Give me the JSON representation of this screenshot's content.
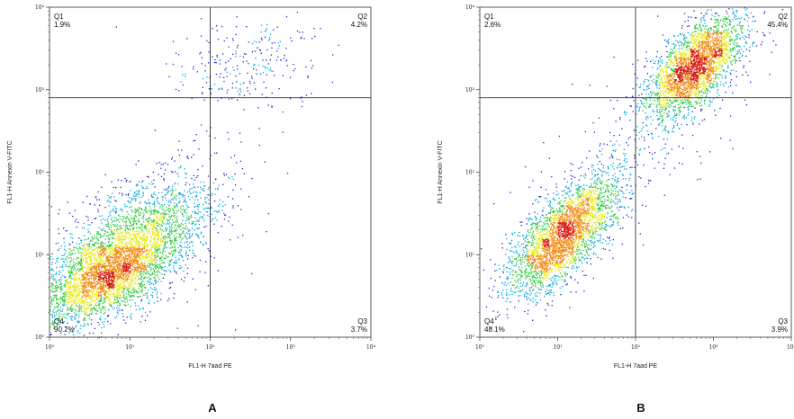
{
  "figure": {
    "panel_labels": [
      "A",
      "B"
    ]
  },
  "chart_data": [
    {
      "type": "scatter",
      "subtype": "flow-cytometry-density-dot-plot",
      "panel": "A",
      "xlabel": "FL1-H  7aad PE",
      "ylabel": "FL1-H  Annexin V-FITC",
      "xscale": "log",
      "yscale": "log",
      "xlim": [
        1,
        10000
      ],
      "ylim": [
        1,
        10000
      ],
      "x_ticks": [
        "10⁰",
        "10¹",
        "10²",
        "10³",
        "10⁴"
      ],
      "y_ticks": [
        "10⁰",
        "10¹",
        "10²",
        "10³",
        "10⁴"
      ],
      "gate": {
        "x": 100,
        "y": 800
      },
      "quadrants": [
        {
          "name": "Q1",
          "percent": "1.9%"
        },
        {
          "name": "Q2",
          "percent": "4.2%"
        },
        {
          "name": "Q3",
          "percent": "3.7%"
        },
        {
          "name": "Q4",
          "percent": "90.2%"
        }
      ],
      "populations": [
        {
          "center": [
            5,
            6
          ],
          "spread": [
            0.45,
            0.32
          ],
          "rho": 0.6,
          "weight": 0.62
        },
        {
          "center": [
            15,
            20
          ],
          "spread": [
            0.5,
            0.4
          ],
          "rho": 0.55,
          "weight": 0.3
        },
        {
          "center": [
            300,
            2000
          ],
          "spread": [
            0.45,
            0.3
          ],
          "rho": 0.2,
          "weight": 0.05
        },
        {
          "center": [
            2,
            8
          ],
          "spread": [
            0.9,
            0.9
          ],
          "rho": 0.0,
          "weight": 0.03
        }
      ],
      "n_points": 5200,
      "density_colors": [
        "#1a22d8",
        "#00a6e0",
        "#2ec93d",
        "#e8e81c",
        "#f08a10",
        "#d81a10"
      ]
    },
    {
      "type": "scatter",
      "subtype": "flow-cytometry-density-dot-plot",
      "panel": "B",
      "xlabel": "FL1-H  7aad PE",
      "ylabel": "FL1-H  Annexin V-FITC",
      "xscale": "log",
      "yscale": "log",
      "xlim": [
        1,
        10000
      ],
      "ylim": [
        1,
        10000
      ],
      "x_ticks": [
        "10⁰",
        "10¹",
        "10²",
        "10³",
        "10⁴"
      ],
      "y_ticks": [
        "10⁰",
        "10¹",
        "10²",
        "10³",
        "10⁴"
      ],
      "gate": {
        "x": 100,
        "y": 800
      },
      "quadrants": [
        {
          "name": "Q1",
          "percent": "2.6%"
        },
        {
          "name": "Q2",
          "percent": "45.4%"
        },
        {
          "name": "Q3",
          "percent": "3.9%"
        },
        {
          "name": "Q4",
          "percent": "48.1%"
        }
      ],
      "populations": [
        {
          "center": [
            12,
            18
          ],
          "spread": [
            0.35,
            0.35
          ],
          "rho": 0.7,
          "weight": 0.48
        },
        {
          "center": [
            600,
            2000
          ],
          "spread": [
            0.3,
            0.3
          ],
          "rho": 0.6,
          "weight": 0.45
        },
        {
          "center": [
            80,
            150
          ],
          "spread": [
            0.8,
            0.8
          ],
          "rho": 0.8,
          "weight": 0.07
        }
      ],
      "n_points": 6000,
      "density_colors": [
        "#1a22d8",
        "#00a6e0",
        "#2ec93d",
        "#e8e81c",
        "#f08a10",
        "#d81a10"
      ]
    }
  ]
}
